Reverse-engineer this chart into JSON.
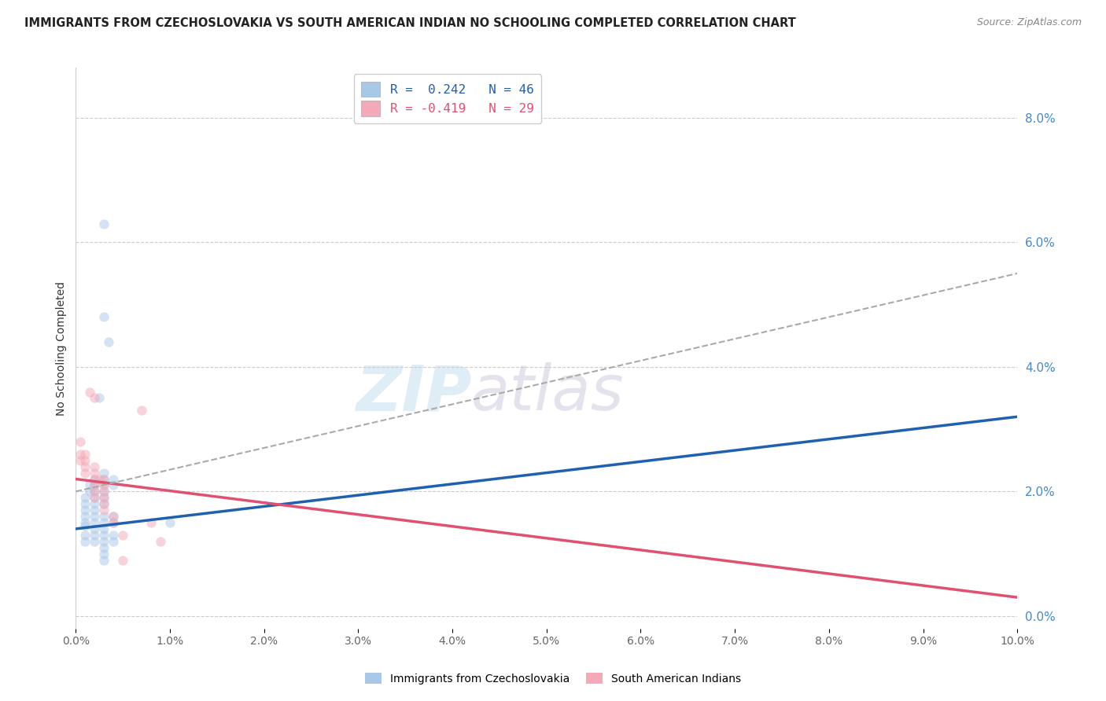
{
  "title": "IMMIGRANTS FROM CZECHOSLOVAKIA VS SOUTH AMERICAN INDIAN NO SCHOOLING COMPLETED CORRELATION CHART",
  "source": "Source: ZipAtlas.com",
  "ylabel": "No Schooling Completed",
  "legend_blue_r": "R =  0.242",
  "legend_blue_n": "N = 46",
  "legend_pink_r": "R = -0.419",
  "legend_pink_n": "N = 29",
  "legend_label_blue": "Immigrants from Czechoslovakia",
  "legend_label_pink": "South American Indians",
  "blue_color": "#A8C8E8",
  "pink_color": "#F4A8B8",
  "blue_line_color": "#2060B0",
  "pink_line_color": "#E05070",
  "gray_dash_color": "#AAAAAA",
  "background_color": "#FFFFFF",
  "watermark_zip": "ZIP",
  "watermark_atlas": "atlas",
  "xlim": [
    0.0,
    0.1
  ],
  "ylim": [
    -0.002,
    0.088
  ],
  "blue_dots": [
    [
      0.001,
      0.019
    ],
    [
      0.001,
      0.018
    ],
    [
      0.001,
      0.017
    ],
    [
      0.001,
      0.016
    ],
    [
      0.001,
      0.015
    ],
    [
      0.001,
      0.0145
    ],
    [
      0.001,
      0.013
    ],
    [
      0.001,
      0.012
    ],
    [
      0.0015,
      0.021
    ],
    [
      0.0015,
      0.02
    ],
    [
      0.002,
      0.022
    ],
    [
      0.002,
      0.021
    ],
    [
      0.002,
      0.02
    ],
    [
      0.002,
      0.019
    ],
    [
      0.002,
      0.018
    ],
    [
      0.002,
      0.017
    ],
    [
      0.002,
      0.016
    ],
    [
      0.002,
      0.015
    ],
    [
      0.002,
      0.014
    ],
    [
      0.002,
      0.013
    ],
    [
      0.002,
      0.012
    ],
    [
      0.0025,
      0.035
    ],
    [
      0.003,
      0.063
    ],
    [
      0.003,
      0.048
    ],
    [
      0.003,
      0.023
    ],
    [
      0.003,
      0.022
    ],
    [
      0.003,
      0.021
    ],
    [
      0.003,
      0.02
    ],
    [
      0.003,
      0.019
    ],
    [
      0.003,
      0.018
    ],
    [
      0.003,
      0.016
    ],
    [
      0.003,
      0.015
    ],
    [
      0.003,
      0.014
    ],
    [
      0.003,
      0.013
    ],
    [
      0.003,
      0.012
    ],
    [
      0.003,
      0.011
    ],
    [
      0.003,
      0.01
    ],
    [
      0.003,
      0.009
    ],
    [
      0.0035,
      0.044
    ],
    [
      0.004,
      0.022
    ],
    [
      0.004,
      0.021
    ],
    [
      0.004,
      0.016
    ],
    [
      0.004,
      0.015
    ],
    [
      0.004,
      0.013
    ],
    [
      0.004,
      0.012
    ],
    [
      0.01,
      0.015
    ]
  ],
  "pink_dots": [
    [
      0.0005,
      0.028
    ],
    [
      0.0005,
      0.026
    ],
    [
      0.0005,
      0.025
    ],
    [
      0.001,
      0.026
    ],
    [
      0.001,
      0.025
    ],
    [
      0.001,
      0.024
    ],
    [
      0.001,
      0.023
    ],
    [
      0.0015,
      0.036
    ],
    [
      0.002,
      0.035
    ],
    [
      0.002,
      0.024
    ],
    [
      0.002,
      0.023
    ],
    [
      0.002,
      0.022
    ],
    [
      0.002,
      0.021
    ],
    [
      0.002,
      0.02
    ],
    [
      0.002,
      0.019
    ],
    [
      0.0025,
      0.022
    ],
    [
      0.003,
      0.022
    ],
    [
      0.003,
      0.021
    ],
    [
      0.003,
      0.02
    ],
    [
      0.003,
      0.019
    ],
    [
      0.003,
      0.018
    ],
    [
      0.003,
      0.017
    ],
    [
      0.004,
      0.016
    ],
    [
      0.004,
      0.015
    ],
    [
      0.005,
      0.013
    ],
    [
      0.005,
      0.009
    ],
    [
      0.007,
      0.033
    ],
    [
      0.008,
      0.015
    ],
    [
      0.009,
      0.012
    ]
  ],
  "blue_line": [
    [
      0.0,
      0.014
    ],
    [
      0.1,
      0.032
    ]
  ],
  "pink_line": [
    [
      0.0,
      0.022
    ],
    [
      0.1,
      0.003
    ]
  ],
  "gray_dash_line": [
    [
      0.0,
      0.02
    ],
    [
      0.1,
      0.055
    ]
  ],
  "dot_size": 80,
  "dot_alpha": 0.5
}
